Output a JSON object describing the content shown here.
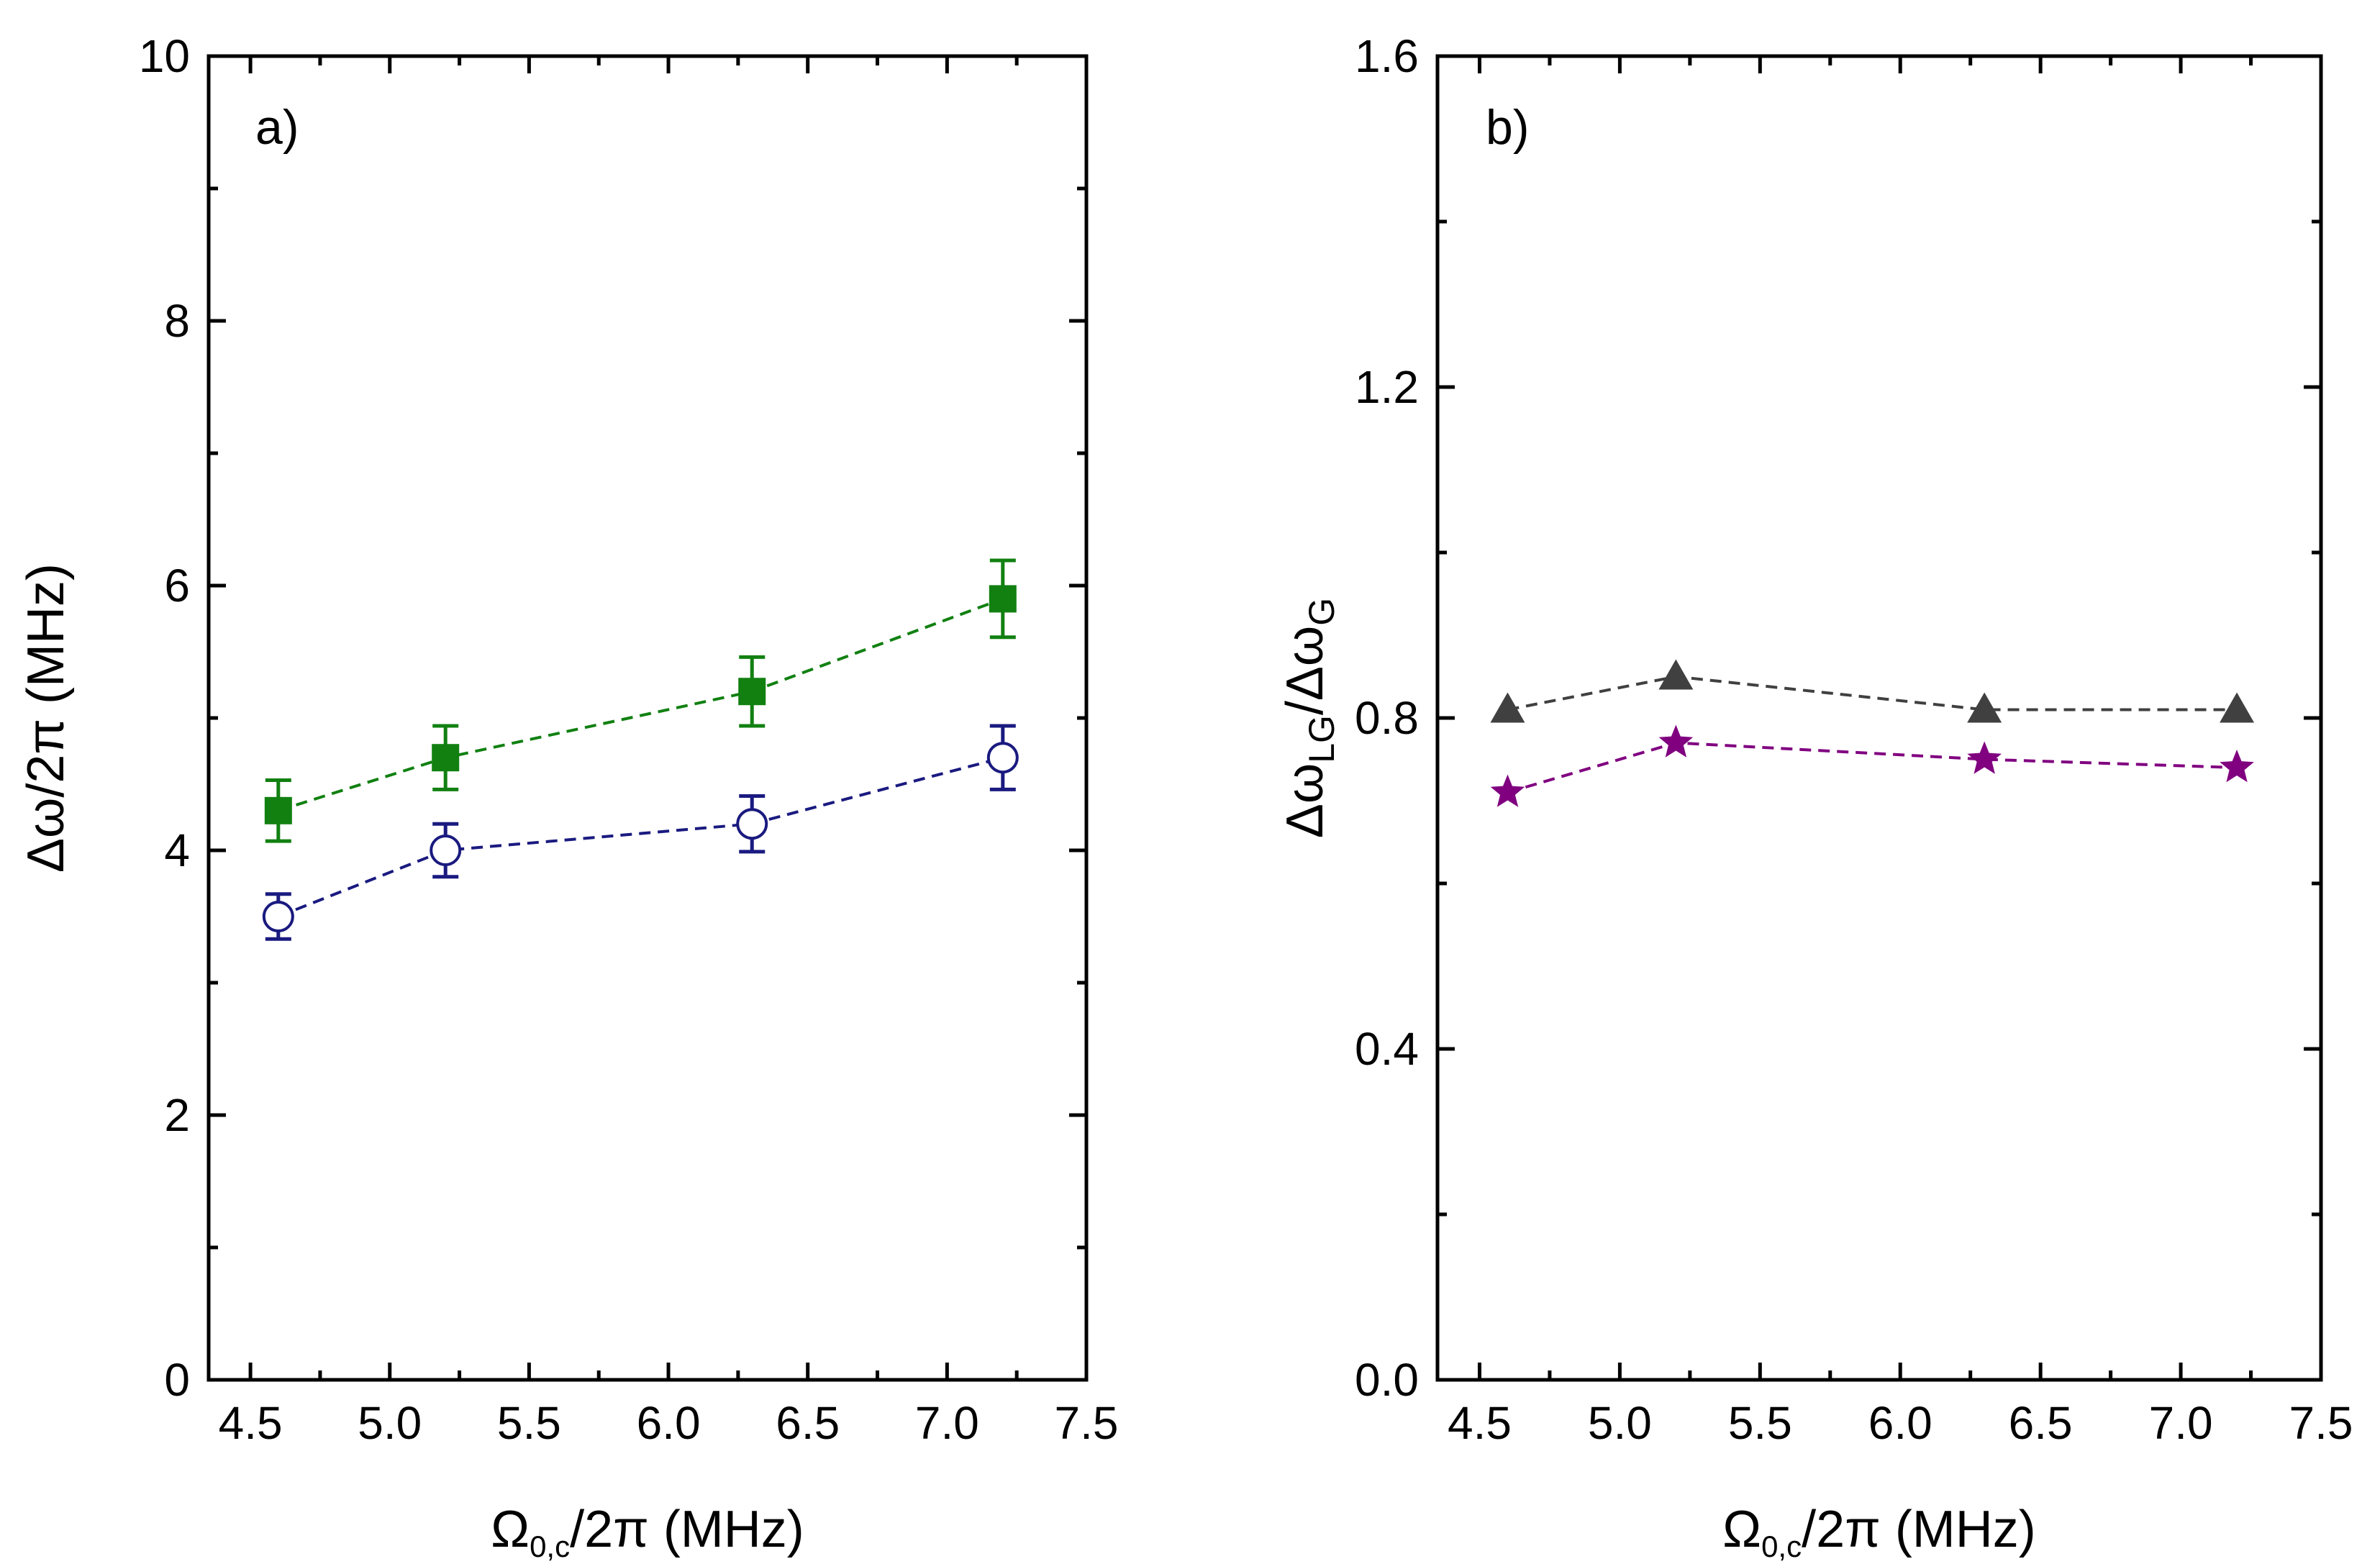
{
  "chart_data": [
    {
      "type": "scatter",
      "panel_label": "a)",
      "xlabel_main": "Ω",
      "xlabel_sub": "0,c",
      "xlabel_rest": "/2π (MHz)",
      "ylabel": "Δω/2π (MHz)",
      "xlim": [
        4.35,
        7.5
      ],
      "ylim": [
        0,
        10
      ],
      "xticks": [
        4.5,
        5.0,
        5.5,
        6.0,
        6.5,
        7.0,
        7.5
      ],
      "xtick_labels": [
        "4.5",
        "5.0",
        "5.5",
        "6.0",
        "6.5",
        "7.0",
        "7.5"
      ],
      "yticks": [
        0,
        2,
        4,
        6,
        8,
        10
      ],
      "ytick_labels": [
        "0",
        "2",
        "4",
        "6",
        "8",
        "10"
      ],
      "series": [
        {
          "name": "green squares",
          "marker": "square-filled",
          "color": "#118011",
          "x": [
            4.6,
            5.2,
            6.3,
            7.2
          ],
          "y": [
            4.3,
            4.7,
            5.2,
            5.9
          ],
          "err": [
            0.23,
            0.24,
            0.26,
            0.29
          ]
        },
        {
          "name": "blue open circles",
          "marker": "circle-open",
          "color": "#1a1a80",
          "x": [
            4.6,
            5.2,
            6.3,
            7.2
          ],
          "y": [
            3.5,
            4.0,
            4.2,
            4.7
          ],
          "err": [
            0.17,
            0.2,
            0.21,
            0.24
          ]
        }
      ]
    },
    {
      "type": "scatter",
      "panel_label": "b)",
      "xlabel_main": "Ω",
      "xlabel_sub": "0,c",
      "xlabel_rest": "/2π (MHz)",
      "ylabel_main": "Δω",
      "ylabel_sub1": "LG",
      "ylabel_mid": "/Δω",
      "ylabel_sub2": "G",
      "xlim": [
        4.35,
        7.5
      ],
      "ylim": [
        0,
        1.6
      ],
      "xticks": [
        4.5,
        5.0,
        5.5,
        6.0,
        6.5,
        7.0,
        7.5
      ],
      "xtick_labels": [
        "4.5",
        "5.0",
        "5.5",
        "6.0",
        "6.5",
        "7.0",
        "7.5"
      ],
      "yticks": [
        0,
        0.4,
        0.8,
        1.2,
        1.6
      ],
      "ytick_labels": [
        "0.0",
        "0.4",
        "0.8",
        "1.2",
        "1.6"
      ],
      "series": [
        {
          "name": "gray triangles",
          "marker": "triangle-filled",
          "color": "#404040",
          "x": [
            4.6,
            5.2,
            6.3,
            7.2
          ],
          "y": [
            0.81,
            0.85,
            0.81,
            0.81
          ]
        },
        {
          "name": "purple stars",
          "marker": "star-filled",
          "color": "#800080",
          "x": [
            4.6,
            5.2,
            6.3,
            7.2
          ],
          "y": [
            0.71,
            0.77,
            0.75,
            0.74
          ]
        }
      ]
    }
  ]
}
